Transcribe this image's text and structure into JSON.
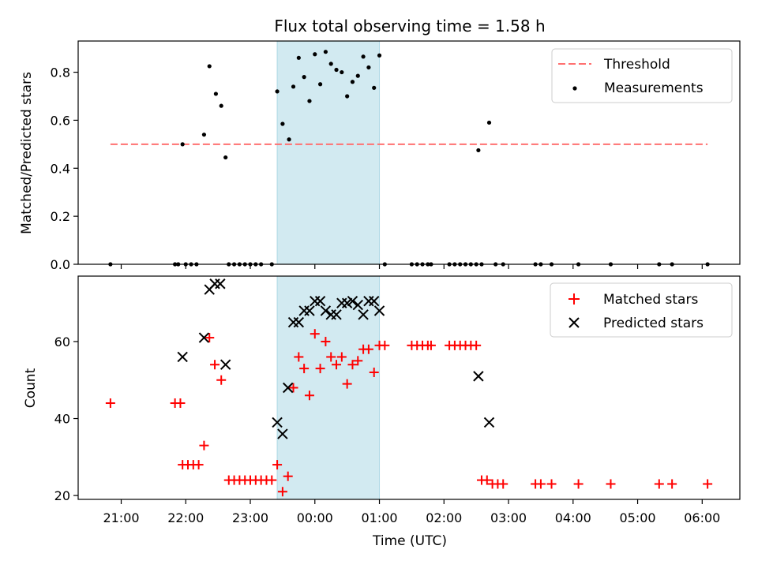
{
  "chart_data": [
    {
      "type": "scatter",
      "title": "Flux total observing time = 1.58 h",
      "xlabel": "",
      "ylabel": "Matched/Predicted stars",
      "ylim": [
        0,
        0.93
      ],
      "yticks": [
        "0.0",
        "0.2",
        "0.4",
        "0.6",
        "0.8"
      ],
      "ytick_values": [
        0.0,
        0.2,
        0.4,
        0.6,
        0.8
      ],
      "shaded_interval": [
        "23:25",
        "01:00"
      ],
      "shaded_color": "#add8e6",
      "legend_position": "top-right",
      "threshold": {
        "name": "Threshold",
        "value": 0.5,
        "x_start": "20:50",
        "x_end": "06:05",
        "color": "#ff7070",
        "style": "dashed"
      },
      "series": [
        {
          "name": "Measurements",
          "color": "#000000",
          "marker": "dot",
          "points": [
            [
              "20:50",
              0.0
            ],
            [
              "21:50",
              0.0
            ],
            [
              "21:53",
              0.0
            ],
            [
              "22:00",
              0.0
            ],
            [
              "22:05",
              0.0
            ],
            [
              "22:10",
              0.0
            ],
            [
              "21:57",
              0.5
            ],
            [
              "22:17",
              0.54
            ],
            [
              "22:22",
              0.825
            ],
            [
              "22:28",
              0.71
            ],
            [
              "22:33",
              0.66
            ],
            [
              "22:37",
              0.445
            ],
            [
              "22:40",
              0.0
            ],
            [
              "22:45",
              0.0
            ],
            [
              "22:50",
              0.0
            ],
            [
              "22:55",
              0.0
            ],
            [
              "23:00",
              0.0
            ],
            [
              "23:05",
              0.0
            ],
            [
              "23:10",
              0.0
            ],
            [
              "23:20",
              0.0
            ],
            [
              "23:25",
              0.72
            ],
            [
              "23:30",
              0.585
            ],
            [
              "23:36",
              0.52
            ],
            [
              "23:40",
              0.74
            ],
            [
              "23:45",
              0.86
            ],
            [
              "23:50",
              0.78
            ],
            [
              "23:55",
              0.68
            ],
            [
              "00:00",
              0.875
            ],
            [
              "00:05",
              0.75
            ],
            [
              "00:10",
              0.885
            ],
            [
              "00:15",
              0.835
            ],
            [
              "00:20",
              0.81
            ],
            [
              "00:25",
              0.8
            ],
            [
              "00:30",
              0.7
            ],
            [
              "00:35",
              0.76
            ],
            [
              "00:40",
              0.785
            ],
            [
              "00:45",
              0.865
            ],
            [
              "00:50",
              0.82
            ],
            [
              "00:55",
              0.735
            ],
            [
              "01:00",
              0.87
            ],
            [
              "01:05",
              0.0
            ],
            [
              "01:30",
              0.0
            ],
            [
              "01:35",
              0.0
            ],
            [
              "01:40",
              0.0
            ],
            [
              "01:45",
              0.0
            ],
            [
              "01:48",
              0.0
            ],
            [
              "02:05",
              0.0
            ],
            [
              "02:10",
              0.0
            ],
            [
              "02:15",
              0.0
            ],
            [
              "02:20",
              0.0
            ],
            [
              "02:25",
              0.0
            ],
            [
              "02:30",
              0.0
            ],
            [
              "02:35",
              0.0
            ],
            [
              "02:32",
              0.475
            ],
            [
              "02:42",
              0.59
            ],
            [
              "02:48",
              0.0
            ],
            [
              "02:55",
              0.0
            ],
            [
              "03:25",
              0.0
            ],
            [
              "03:30",
              0.0
            ],
            [
              "03:40",
              0.0
            ],
            [
              "04:05",
              0.0
            ],
            [
              "04:35",
              0.0
            ],
            [
              "05:20",
              0.0
            ],
            [
              "05:32",
              0.0
            ],
            [
              "06:05",
              0.0
            ]
          ]
        }
      ]
    },
    {
      "type": "scatter",
      "title": "",
      "xlabel": "Time (UTC)",
      "ylabel": "Count",
      "ylim": [
        19,
        77
      ],
      "yticks": [
        "20",
        "40",
        "60"
      ],
      "ytick_values": [
        20,
        40,
        60
      ],
      "xlim": [
        "20:20",
        "06:35"
      ],
      "xticks": [
        "21:00",
        "22:00",
        "23:00",
        "00:00",
        "01:00",
        "02:00",
        "03:00",
        "04:00",
        "05:00",
        "06:00"
      ],
      "shaded_interval": [
        "23:25",
        "01:00"
      ],
      "shaded_color": "#add8e6",
      "legend_position": "top-right",
      "series": [
        {
          "name": "Matched stars",
          "color": "#ff0000",
          "marker": "plus",
          "points": [
            [
              "20:50",
              44
            ],
            [
              "21:50",
              44
            ],
            [
              "21:55",
              44
            ],
            [
              "21:57",
              28
            ],
            [
              "22:02",
              28
            ],
            [
              "22:07",
              28
            ],
            [
              "22:12",
              28
            ],
            [
              "22:17",
              33
            ],
            [
              "22:22",
              61
            ],
            [
              "22:27",
              54
            ],
            [
              "22:33",
              50
            ],
            [
              "22:40",
              24
            ],
            [
              "22:45",
              24
            ],
            [
              "22:50",
              24
            ],
            [
              "22:55",
              24
            ],
            [
              "23:00",
              24
            ],
            [
              "23:05",
              24
            ],
            [
              "23:10",
              24
            ],
            [
              "23:15",
              24
            ],
            [
              "23:20",
              24
            ],
            [
              "23:25",
              28
            ],
            [
              "23:30",
              21
            ],
            [
              "23:35",
              25
            ],
            [
              "23:40",
              48
            ],
            [
              "23:45",
              56
            ],
            [
              "23:50",
              53
            ],
            [
              "23:55",
              46
            ],
            [
              "00:00",
              62
            ],
            [
              "00:05",
              53
            ],
            [
              "00:10",
              60
            ],
            [
              "00:15",
              56
            ],
            [
              "00:20",
              54
            ],
            [
              "00:25",
              56
            ],
            [
              "00:30",
              49
            ],
            [
              "00:35",
              54
            ],
            [
              "00:40",
              55
            ],
            [
              "00:45",
              58
            ],
            [
              "00:50",
              58
            ],
            [
              "00:55",
              52
            ],
            [
              "01:00",
              59
            ],
            [
              "01:05",
              59
            ],
            [
              "01:30",
              59
            ],
            [
              "01:35",
              59
            ],
            [
              "01:40",
              59
            ],
            [
              "01:45",
              59
            ],
            [
              "01:48",
              59
            ],
            [
              "02:05",
              59
            ],
            [
              "02:10",
              59
            ],
            [
              "02:15",
              59
            ],
            [
              "02:20",
              59
            ],
            [
              "02:25",
              59
            ],
            [
              "02:30",
              59
            ],
            [
              "02:35",
              24
            ],
            [
              "02:40",
              24
            ],
            [
              "02:45",
              23
            ],
            [
              "02:50",
              23
            ],
            [
              "02:55",
              23
            ],
            [
              "03:25",
              23
            ],
            [
              "03:30",
              23
            ],
            [
              "03:40",
              23
            ],
            [
              "04:05",
              23
            ],
            [
              "04:35",
              23
            ],
            [
              "05:20",
              23
            ],
            [
              "05:32",
              23
            ],
            [
              "06:05",
              23
            ]
          ]
        },
        {
          "name": "Predicted stars",
          "color": "#000000",
          "marker": "x",
          "points": [
            [
              "21:57",
              56
            ],
            [
              "22:17",
              61
            ],
            [
              "22:22",
              73.5
            ],
            [
              "22:27",
              75
            ],
            [
              "22:32",
              75
            ],
            [
              "22:37",
              54
            ],
            [
              "23:25",
              39
            ],
            [
              "23:30",
              36
            ],
            [
              "23:35",
              48
            ],
            [
              "23:40",
              65
            ],
            [
              "23:45",
              65
            ],
            [
              "23:50",
              68
            ],
            [
              "23:55",
              68
            ],
            [
              "00:00",
              70.5
            ],
            [
              "00:05",
              70.5
            ],
            [
              "00:10",
              68
            ],
            [
              "00:15",
              67
            ],
            [
              "00:20",
              67
            ],
            [
              "00:25",
              70
            ],
            [
              "00:30",
              70
            ],
            [
              "00:35",
              70.5
            ],
            [
              "00:40",
              69.5
            ],
            [
              "00:45",
              67
            ],
            [
              "00:50",
              70.5
            ],
            [
              "00:55",
              70.5
            ],
            [
              "01:00",
              68
            ],
            [
              "02:32",
              51
            ],
            [
              "02:42",
              39
            ]
          ]
        }
      ]
    }
  ]
}
